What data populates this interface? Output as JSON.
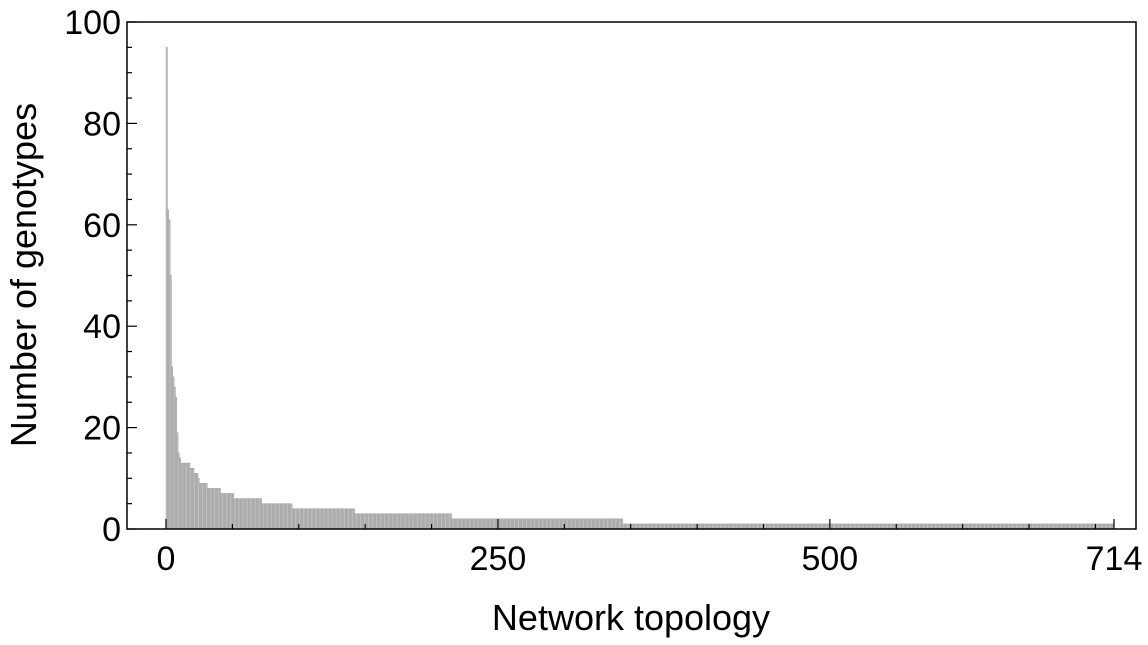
{
  "chart_data": {
    "type": "bar",
    "title": "",
    "xlabel": "Network topology",
    "ylabel": "Number of genotypes",
    "xlim": [
      0,
      714
    ],
    "ylim": [
      0,
      100
    ],
    "x_ticks": [
      0,
      250,
      500,
      714
    ],
    "y_ticks": [
      0,
      20,
      40,
      60,
      80,
      100
    ],
    "grid": false,
    "legend": "none",
    "bar_color": "#c0c0c0",
    "bar_edge_color": "#8c8c8c",
    "series": [
      {
        "values_head": [
          95,
          63,
          61,
          50,
          32,
          30,
          28,
          26,
          19,
          15,
          14,
          13,
          13,
          13,
          13,
          13,
          13,
          13,
          12,
          12,
          12,
          11,
          11,
          11,
          10
        ],
        "runs": [
          {
            "count": 6,
            "value": 9
          },
          {
            "count": 10,
            "value": 8
          },
          {
            "count": 10,
            "value": 7
          },
          {
            "count": 21,
            "value": 6
          },
          {
            "count": 23,
            "value": 5
          },
          {
            "count": 47,
            "value": 4
          },
          {
            "count": 73,
            "value": 3
          },
          {
            "count": 129,
            "value": 2
          },
          {
            "count": 370,
            "value": 1
          }
        ]
      }
    ]
  }
}
